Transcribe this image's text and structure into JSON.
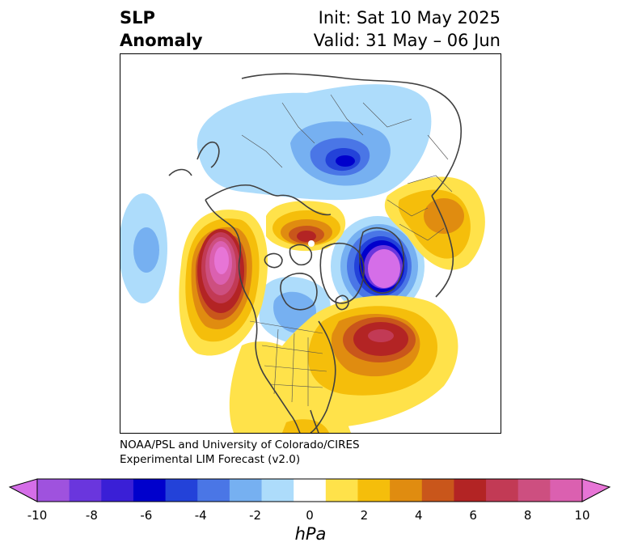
{
  "title": {
    "left_line1": "SLP",
    "left_line2": "Anomaly",
    "right_line1": "Init: Sat 10 May 2025",
    "right_line2": "Valid: 31 May – 06 Jun"
  },
  "credit": {
    "line1": "NOAA/PSL and University of Colorado/CIRES",
    "line2": "Experimental LIM Forecast (v2.0)"
  },
  "colorbar": {
    "unit": "hPa",
    "tick_labels": [
      "-10",
      "-8",
      "-6",
      "-4",
      "-2",
      "0",
      "2",
      "4",
      "6",
      "8",
      "10"
    ],
    "colors": [
      "#d56ee8",
      "#9f52de",
      "#6a36dd",
      "#3a1fd6",
      "#0000cc",
      "#2342d9",
      "#4a76e6",
      "#76b0f1",
      "#addcfb",
      "#ffffff",
      "#ffe24a",
      "#f5be0b",
      "#e08c10",
      "#c9561b",
      "#b32424",
      "#c23a55",
      "#cd4f80",
      "#db60b0",
      "#e775d6"
    ],
    "extend": "both"
  },
  "map_legend": {
    "projection": "north-polar-stereographic",
    "features": [
      {
        "name": "low-over-siberia",
        "sign": "negative",
        "peak_hpa": -7
      },
      {
        "name": "low-over-scandinavia",
        "sign": "negative",
        "peak_hpa": -9
      },
      {
        "name": "high-over-gulf-of-alaska",
        "sign": "positive",
        "peak_hpa": 9
      },
      {
        "name": "high-over-north-atlantic",
        "sign": "positive",
        "peak_hpa": 6
      },
      {
        "name": "high-near-greenland",
        "sign": "positive",
        "peak_hpa": 6
      },
      {
        "name": "low-over-north-pacific",
        "sign": "negative",
        "peak_hpa": -3
      },
      {
        "name": "high-over-eastern-europe",
        "sign": "positive",
        "peak_hpa": 3
      }
    ]
  }
}
